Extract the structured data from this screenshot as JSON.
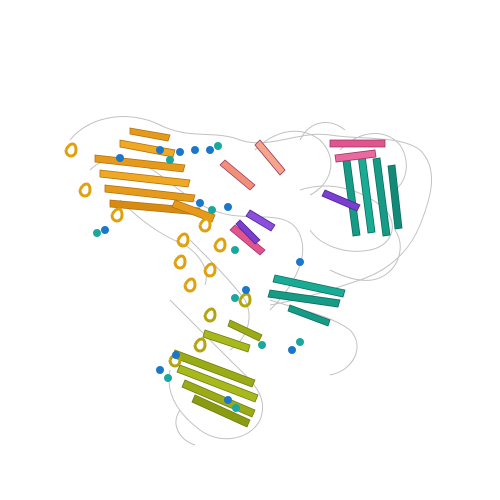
{
  "image": {
    "kind": "protein-structure-cartoon",
    "background": "#ffffff",
    "colors": {
      "chain_orange": "#e69a1c",
      "chain_olive": "#9aab17",
      "chain_teal": "#169b86",
      "chain_magenta": "#e0558f",
      "chain_purple": "#7a3fd0",
      "chain_salmon": "#f0907a",
      "chain_cyan": "#27c3c9",
      "glycan_blue": "#1a77c9",
      "glycan_teal": "#1aa79d",
      "loop_outline": "#b8b8b8"
    },
    "regions": [
      {
        "name": "upper-left-domain",
        "color": "chain_orange"
      },
      {
        "name": "lower-domain",
        "color": "chain_olive"
      },
      {
        "name": "right-domain",
        "color": "chain_teal"
      },
      {
        "name": "right-upper-domain",
        "color": "chain_magenta"
      },
      {
        "name": "central-core",
        "color": "chain_purple"
      }
    ]
  }
}
